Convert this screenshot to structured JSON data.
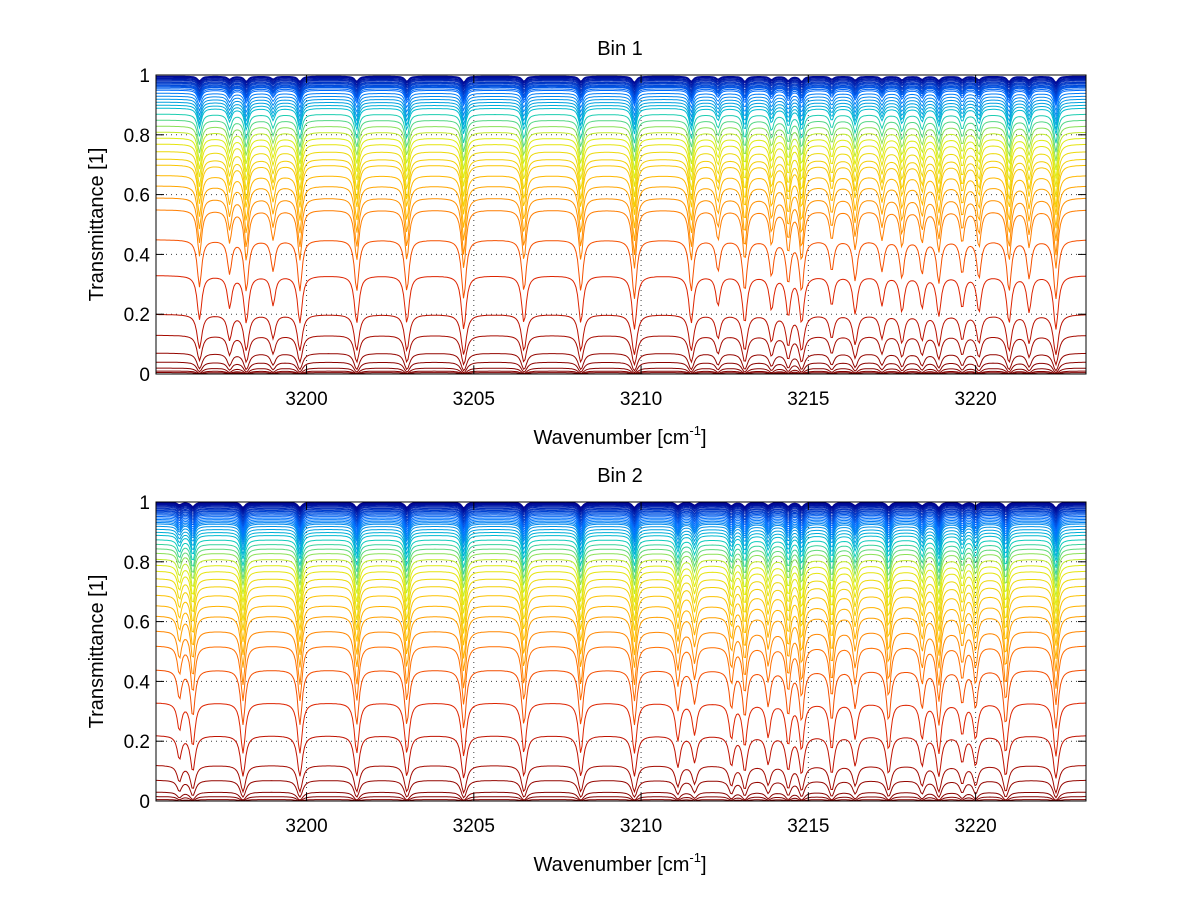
{
  "chart_data": [
    {
      "type": "line",
      "title": "Bin 1",
      "xlabel": "Wavenumber [cm",
      "xlabel_sup": "-1",
      "xlabel_tail": "]",
      "ylabel": "Transmittance [1]",
      "xlim": [
        3195.5,
        3223.3
      ],
      "ylim": [
        0,
        1
      ],
      "xticks": [
        3200,
        3205,
        3210,
        3215,
        3220
      ],
      "xtick_labels": [
        "3200",
        "3205",
        "3210",
        "3215",
        "3220"
      ],
      "yticks": [
        0,
        0.2,
        0.4,
        0.6,
        0.8,
        1
      ],
      "ytick_labels": [
        "0",
        "0.2",
        "0.4",
        "0.6",
        "0.8",
        "1"
      ],
      "grid": true,
      "absorption_lines": [
        {
          "x": 3196.8,
          "strength": 0.9
        },
        {
          "x": 3197.7,
          "strength": 0.6
        },
        {
          "x": 3198.2,
          "strength": 1.0
        },
        {
          "x": 3199.0,
          "strength": 0.55
        },
        {
          "x": 3199.8,
          "strength": 1.0
        },
        {
          "x": 3201.5,
          "strength": 1.0
        },
        {
          "x": 3203.0,
          "strength": 1.0
        },
        {
          "x": 3204.7,
          "strength": 1.2
        },
        {
          "x": 3206.5,
          "strength": 1.0
        },
        {
          "x": 3208.2,
          "strength": 1.0
        },
        {
          "x": 3209.8,
          "strength": 1.2
        },
        {
          "x": 3211.5,
          "strength": 1.0
        },
        {
          "x": 3212.3,
          "strength": 0.55
        },
        {
          "x": 3213.1,
          "strength": 1.0
        },
        {
          "x": 3213.9,
          "strength": 0.65
        },
        {
          "x": 3214.4,
          "strength": 0.8
        },
        {
          "x": 3214.8,
          "strength": 1.0
        },
        {
          "x": 3215.7,
          "strength": 0.55
        },
        {
          "x": 3216.4,
          "strength": 0.75
        },
        {
          "x": 3217.2,
          "strength": 0.55
        },
        {
          "x": 3217.8,
          "strength": 0.7
        },
        {
          "x": 3218.4,
          "strength": 0.6
        },
        {
          "x": 3218.9,
          "strength": 0.8
        },
        {
          "x": 3219.6,
          "strength": 0.6
        },
        {
          "x": 3220.1,
          "strength": 0.7
        },
        {
          "x": 3221.0,
          "strength": 1.0
        },
        {
          "x": 3221.6,
          "strength": 0.7
        },
        {
          "x": 3222.4,
          "strength": 1.2
        }
      ],
      "series_baselines": [
        0.997,
        0.995,
        0.993,
        0.99,
        0.988,
        0.985,
        0.982,
        0.978,
        0.975,
        0.972,
        0.968,
        0.965,
        0.962,
        0.96,
        0.955,
        0.95,
        0.94,
        0.93,
        0.92,
        0.91,
        0.9,
        0.89,
        0.87,
        0.85,
        0.83,
        0.81,
        0.79,
        0.77,
        0.745,
        0.72,
        0.7,
        0.665,
        0.63,
        0.59,
        0.55,
        0.45,
        0.33,
        0.2,
        0.13,
        0.07,
        0.04,
        0.02,
        0.01,
        0.005
      ]
    },
    {
      "type": "line",
      "title": "Bin 2",
      "xlabel": "Wavenumber [cm",
      "xlabel_sup": "-1",
      "xlabel_tail": "]",
      "ylabel": "Transmittance [1]",
      "xlim": [
        3195.5,
        3223.3
      ],
      "ylim": [
        0,
        1
      ],
      "xticks": [
        3200,
        3205,
        3210,
        3215,
        3220
      ],
      "xtick_labels": [
        "3200",
        "3205",
        "3210",
        "3215",
        "3220"
      ],
      "yticks": [
        0,
        0.2,
        0.4,
        0.6,
        0.8,
        1
      ],
      "ytick_labels": [
        "0",
        "0.2",
        "0.4",
        "0.6",
        "0.8",
        "1"
      ],
      "grid": true,
      "absorption_lines": [
        {
          "x": 3196.2,
          "strength": 0.5
        },
        {
          "x": 3196.6,
          "strength": 0.9
        },
        {
          "x": 3198.1,
          "strength": 1.1
        },
        {
          "x": 3199.8,
          "strength": 1.1
        },
        {
          "x": 3201.5,
          "strength": 1.1
        },
        {
          "x": 3203.0,
          "strength": 1.1
        },
        {
          "x": 3204.7,
          "strength": 1.2
        },
        {
          "x": 3206.5,
          "strength": 1.1
        },
        {
          "x": 3208.2,
          "strength": 1.1
        },
        {
          "x": 3209.8,
          "strength": 1.1
        },
        {
          "x": 3211.1,
          "strength": 0.75
        },
        {
          "x": 3211.6,
          "strength": 0.6
        },
        {
          "x": 3212.7,
          "strength": 0.7
        },
        {
          "x": 3213.1,
          "strength": 0.9
        },
        {
          "x": 3213.8,
          "strength": 0.65
        },
        {
          "x": 3214.4,
          "strength": 0.85
        },
        {
          "x": 3214.8,
          "strength": 1.0
        },
        {
          "x": 3215.7,
          "strength": 1.0
        },
        {
          "x": 3216.4,
          "strength": 0.7
        },
        {
          "x": 3217.4,
          "strength": 1.0
        },
        {
          "x": 3218.4,
          "strength": 0.7
        },
        {
          "x": 3218.9,
          "strength": 1.1
        },
        {
          "x": 3219.6,
          "strength": 0.6
        },
        {
          "x": 3220.0,
          "strength": 0.7
        },
        {
          "x": 3220.9,
          "strength": 1.1
        },
        {
          "x": 3222.4,
          "strength": 1.2
        }
      ],
      "series_baselines": [
        1.0,
        0.998,
        0.996,
        0.994,
        0.992,
        0.99,
        0.987,
        0.984,
        0.98,
        0.977,
        0.973,
        0.97,
        0.966,
        0.962,
        0.958,
        0.953,
        0.948,
        0.943,
        0.938,
        0.933,
        0.928,
        0.92,
        0.91,
        0.9,
        0.89,
        0.875,
        0.86,
        0.845,
        0.83,
        0.81,
        0.79,
        0.77,
        0.745,
        0.72,
        0.69,
        0.655,
        0.62,
        0.57,
        0.52,
        0.44,
        0.33,
        0.22,
        0.12,
        0.07,
        0.03,
        0.015,
        0.005
      ]
    }
  ]
}
